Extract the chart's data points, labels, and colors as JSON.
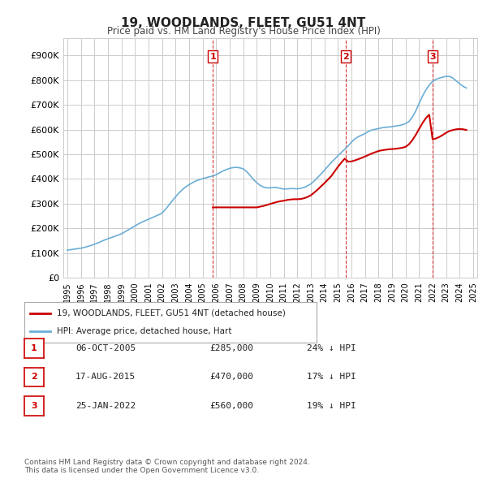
{
  "title": "19, WOODLANDS, FLEET, GU51 4NT",
  "subtitle": "Price paid vs. HM Land Registry's House Price Index (HPI)",
  "hpi_label": "HPI: Average price, detached house, Hart",
  "property_label": "19, WOODLANDS, FLEET, GU51 4NT (detached house)",
  "y_label": "",
  "x_start_year": 1995,
  "x_end_year": 2025,
  "y_min": 0,
  "y_max": 950000,
  "y_ticks": [
    0,
    100000,
    200000,
    300000,
    400000,
    500000,
    600000,
    700000,
    800000,
    900000
  ],
  "y_tick_labels": [
    "£0",
    "£100K",
    "£200K",
    "£300K",
    "£400K",
    "£500K",
    "£600K",
    "£700K",
    "£800K",
    "£900K"
  ],
  "sale_dates": [
    "2005-10-06",
    "2015-08-17",
    "2022-01-25"
  ],
  "sale_prices": [
    285000,
    470000,
    560000
  ],
  "sale_labels": [
    "1",
    "2",
    "3"
  ],
  "sale_info": [
    {
      "num": "1",
      "date": "06-OCT-2005",
      "price": "£285,000",
      "pct": "24% ↓ HPI"
    },
    {
      "num": "2",
      "date": "17-AUG-2015",
      "price": "£470,000",
      "pct": "17% ↓ HPI"
    },
    {
      "num": "3",
      "date": "25-JAN-2022",
      "price": "£560,000",
      "pct": "19% ↓ HPI"
    }
  ],
  "property_color": "#cc0000",
  "hpi_color": "#6baed6",
  "vline_color": "#cc0000",
  "grid_color": "#cccccc",
  "background_color": "#ffffff",
  "footer": "Contains HM Land Registry data © Crown copyright and database right 2024.\nThis data is licensed under the Open Government Licence v3.0.",
  "hpi_x": [
    1995.0,
    1995.25,
    1995.5,
    1995.75,
    1996.0,
    1996.25,
    1996.5,
    1996.75,
    1997.0,
    1997.25,
    1997.5,
    1997.75,
    1998.0,
    1998.25,
    1998.5,
    1998.75,
    1999.0,
    1999.25,
    1999.5,
    1999.75,
    2000.0,
    2000.25,
    2000.5,
    2000.75,
    2001.0,
    2001.25,
    2001.5,
    2001.75,
    2002.0,
    2002.25,
    2002.5,
    2002.75,
    2003.0,
    2003.25,
    2003.5,
    2003.75,
    2004.0,
    2004.25,
    2004.5,
    2004.75,
    2005.0,
    2005.25,
    2005.5,
    2005.75,
    2006.0,
    2006.25,
    2006.5,
    2006.75,
    2007.0,
    2007.25,
    2007.5,
    2007.75,
    2008.0,
    2008.25,
    2008.5,
    2008.75,
    2009.0,
    2009.25,
    2009.5,
    2009.75,
    2010.0,
    2010.25,
    2010.5,
    2010.75,
    2011.0,
    2011.25,
    2011.5,
    2011.75,
    2012.0,
    2012.25,
    2012.5,
    2012.75,
    2013.0,
    2013.25,
    2013.5,
    2013.75,
    2014.0,
    2014.25,
    2014.5,
    2014.75,
    2015.0,
    2015.25,
    2015.5,
    2015.75,
    2016.0,
    2016.25,
    2016.5,
    2016.75,
    2017.0,
    2017.25,
    2017.5,
    2017.75,
    2018.0,
    2018.25,
    2018.5,
    2018.75,
    2019.0,
    2019.25,
    2019.5,
    2019.75,
    2020.0,
    2020.25,
    2020.5,
    2020.75,
    2021.0,
    2021.25,
    2021.5,
    2021.75,
    2022.0,
    2022.25,
    2022.5,
    2022.75,
    2023.0,
    2023.25,
    2023.5,
    2023.75,
    2024.0,
    2024.25,
    2024.5
  ],
  "hpi_y": [
    112000,
    114000,
    116000,
    118000,
    120000,
    123000,
    127000,
    131000,
    136000,
    141000,
    147000,
    153000,
    158000,
    163000,
    168000,
    173000,
    178000,
    186000,
    194000,
    202000,
    210000,
    218000,
    225000,
    231000,
    237000,
    243000,
    249000,
    255000,
    262000,
    277000,
    294000,
    311000,
    328000,
    343000,
    357000,
    368000,
    377000,
    385000,
    392000,
    397000,
    401000,
    405000,
    409000,
    412000,
    417000,
    425000,
    432000,
    438000,
    443000,
    446000,
    447000,
    445000,
    441000,
    430000,
    415000,
    398000,
    385000,
    374000,
    367000,
    364000,
    364000,
    366000,
    365000,
    362000,
    359000,
    360000,
    361000,
    361000,
    360000,
    362000,
    366000,
    372000,
    380000,
    392000,
    406000,
    420000,
    435000,
    451000,
    466000,
    480000,
    494000,
    507000,
    520000,
    534000,
    549000,
    562000,
    571000,
    577000,
    584000,
    592000,
    598000,
    601000,
    604000,
    607000,
    609000,
    610000,
    612000,
    614000,
    616000,
    619000,
    624000,
    632000,
    650000,
    675000,
    705000,
    735000,
    760000,
    780000,
    795000,
    803000,
    808000,
    812000,
    815000,
    815000,
    808000,
    797000,
    785000,
    775000,
    768000
  ],
  "prop_x": [
    2005.75,
    2005.75,
    2009.0,
    2009.25,
    2009.5,
    2009.75,
    2010.0,
    2010.25,
    2010.5,
    2010.75,
    2011.0,
    2011.25,
    2011.5,
    2011.75,
    2012.0,
    2012.25,
    2012.5,
    2012.75,
    2013.0,
    2013.25,
    2013.5,
    2013.75,
    2014.0,
    2014.25,
    2014.5,
    2014.75,
    2015.0,
    2015.25,
    2015.5,
    2015.75,
    2016.0,
    2016.25,
    2016.5,
    2016.75,
    2017.0,
    2017.25,
    2017.5,
    2017.75,
    2018.0,
    2018.25,
    2018.5,
    2018.75,
    2019.0,
    2019.25,
    2019.5,
    2019.75,
    2020.0,
    2020.25,
    2020.5,
    2020.75,
    2021.0,
    2021.25,
    2021.5,
    2021.75,
    2022.0,
    2022.25,
    2022.5,
    2022.75,
    2023.0,
    2023.25,
    2023.5,
    2023.75,
    2024.0,
    2024.25,
    2024.5
  ],
  "prop_y": [
    285000,
    285000,
    285000,
    288000,
    291000,
    295000,
    299000,
    303000,
    307000,
    310000,
    312000,
    315000,
    317000,
    318000,
    318000,
    319000,
    322000,
    327000,
    334000,
    345000,
    357000,
    370000,
    383000,
    397000,
    411000,
    430000,
    449000,
    466000,
    482000,
    470000,
    471000,
    475000,
    480000,
    485000,
    491000,
    497000,
    503000,
    508000,
    513000,
    516000,
    518000,
    520000,
    521000,
    522000,
    524000,
    526000,
    530000,
    540000,
    557000,
    578000,
    602000,
    626000,
    646000,
    660000,
    560000,
    564000,
    570000,
    578000,
    587000,
    594000,
    598000,
    601000,
    602000,
    601000,
    598000
  ]
}
